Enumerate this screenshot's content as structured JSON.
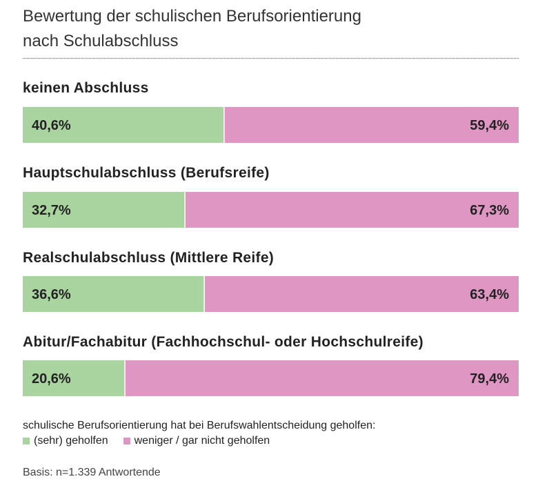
{
  "chart_data": {
    "type": "bar",
    "orientation": "horizontal-stacked-100",
    "title": "Bewertung der schulischen Berufsorientierung",
    "title_line2": "nach Schulabschluss",
    "categories": [
      "keinen Abschluss",
      "Hauptschulabschluss (Berufsreife)",
      "Realschulabschluss (Mittlere Reife)",
      "Abitur/Fachabitur (Fachhochschul- oder Hochschulreife)"
    ],
    "series": [
      {
        "name": "(sehr) geholfen",
        "values": [
          40.6,
          32.7,
          36.6,
          20.6
        ],
        "labels": [
          "40,6%",
          "32,7%",
          "36,6%",
          "20,6%"
        ],
        "color": "#a9d4a0"
      },
      {
        "name": "weniger / gar nicht geholfen",
        "values": [
          59.4,
          67.3,
          63.4,
          79.4
        ],
        "labels": [
          "59,4%",
          "67,3%",
          "63,4%",
          "79,4%"
        ],
        "color": "#df96c2"
      }
    ],
    "xlim": [
      0,
      100
    ],
    "grid": false,
    "legend_title": "schulische Berufsorientierung hat bei Berufswahlentscheidung geholfen:",
    "legend_position": "bottom-left"
  },
  "footer": {
    "basis": "Basis: n=1.339 Antwortende"
  }
}
